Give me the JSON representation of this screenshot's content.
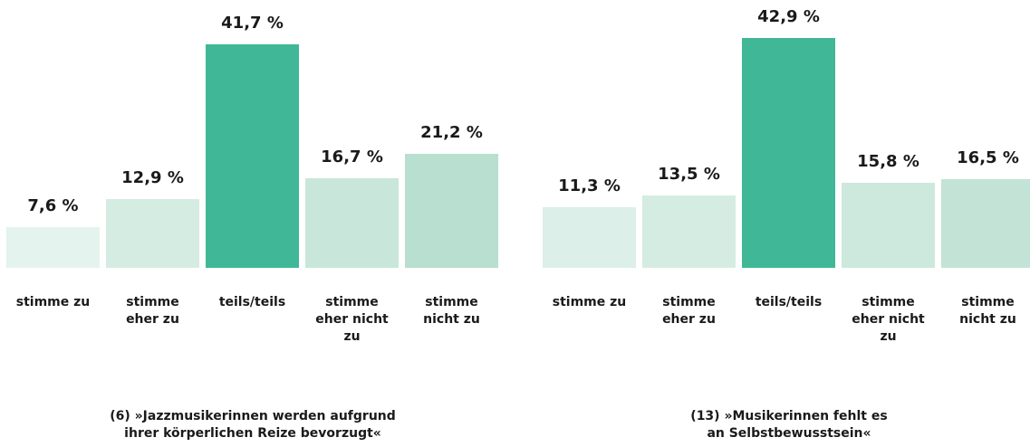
{
  "chart_data": [
    {
      "type": "bar",
      "title": "(6) »Jazzmusikerinnen werden aufgrund\nihrer körperlichen Reize bevorzugt«",
      "categories": [
        "stimme zu",
        "stimme\neher zu",
        "teils/teils",
        "stimme\neher nicht\nzu",
        "stimme\nnicht zu"
      ],
      "values": [
        7.6,
        12.9,
        41.7,
        16.7,
        21.2
      ],
      "value_labels": [
        "7,6 %",
        "12,9 %",
        "41,7 %",
        "16,7 %",
        "21,2 %"
      ],
      "colors": [
        "#e4f3ee",
        "#d5ece3",
        "#40b796",
        "#c9e6da",
        "#b8dfcf"
      ]
    },
    {
      "type": "bar",
      "title": "(13) »Musikerinnen fehlt es\nan Selbstbewusstsein«",
      "categories": [
        "stimme zu",
        "stimme\neher zu",
        "teils/teils",
        "stimme\neher nicht\nzu",
        "stimme\nnicht zu"
      ],
      "values": [
        11.3,
        13.5,
        42.9,
        15.8,
        16.5
      ],
      "value_labels": [
        "11,3 %",
        "13,5 %",
        "42,9 %",
        "15,8 %",
        "16,5 %"
      ],
      "colors": [
        "#dcefe8",
        "#d5ece3",
        "#40b796",
        "#cde8dd",
        "#c3e3d6"
      ]
    }
  ]
}
